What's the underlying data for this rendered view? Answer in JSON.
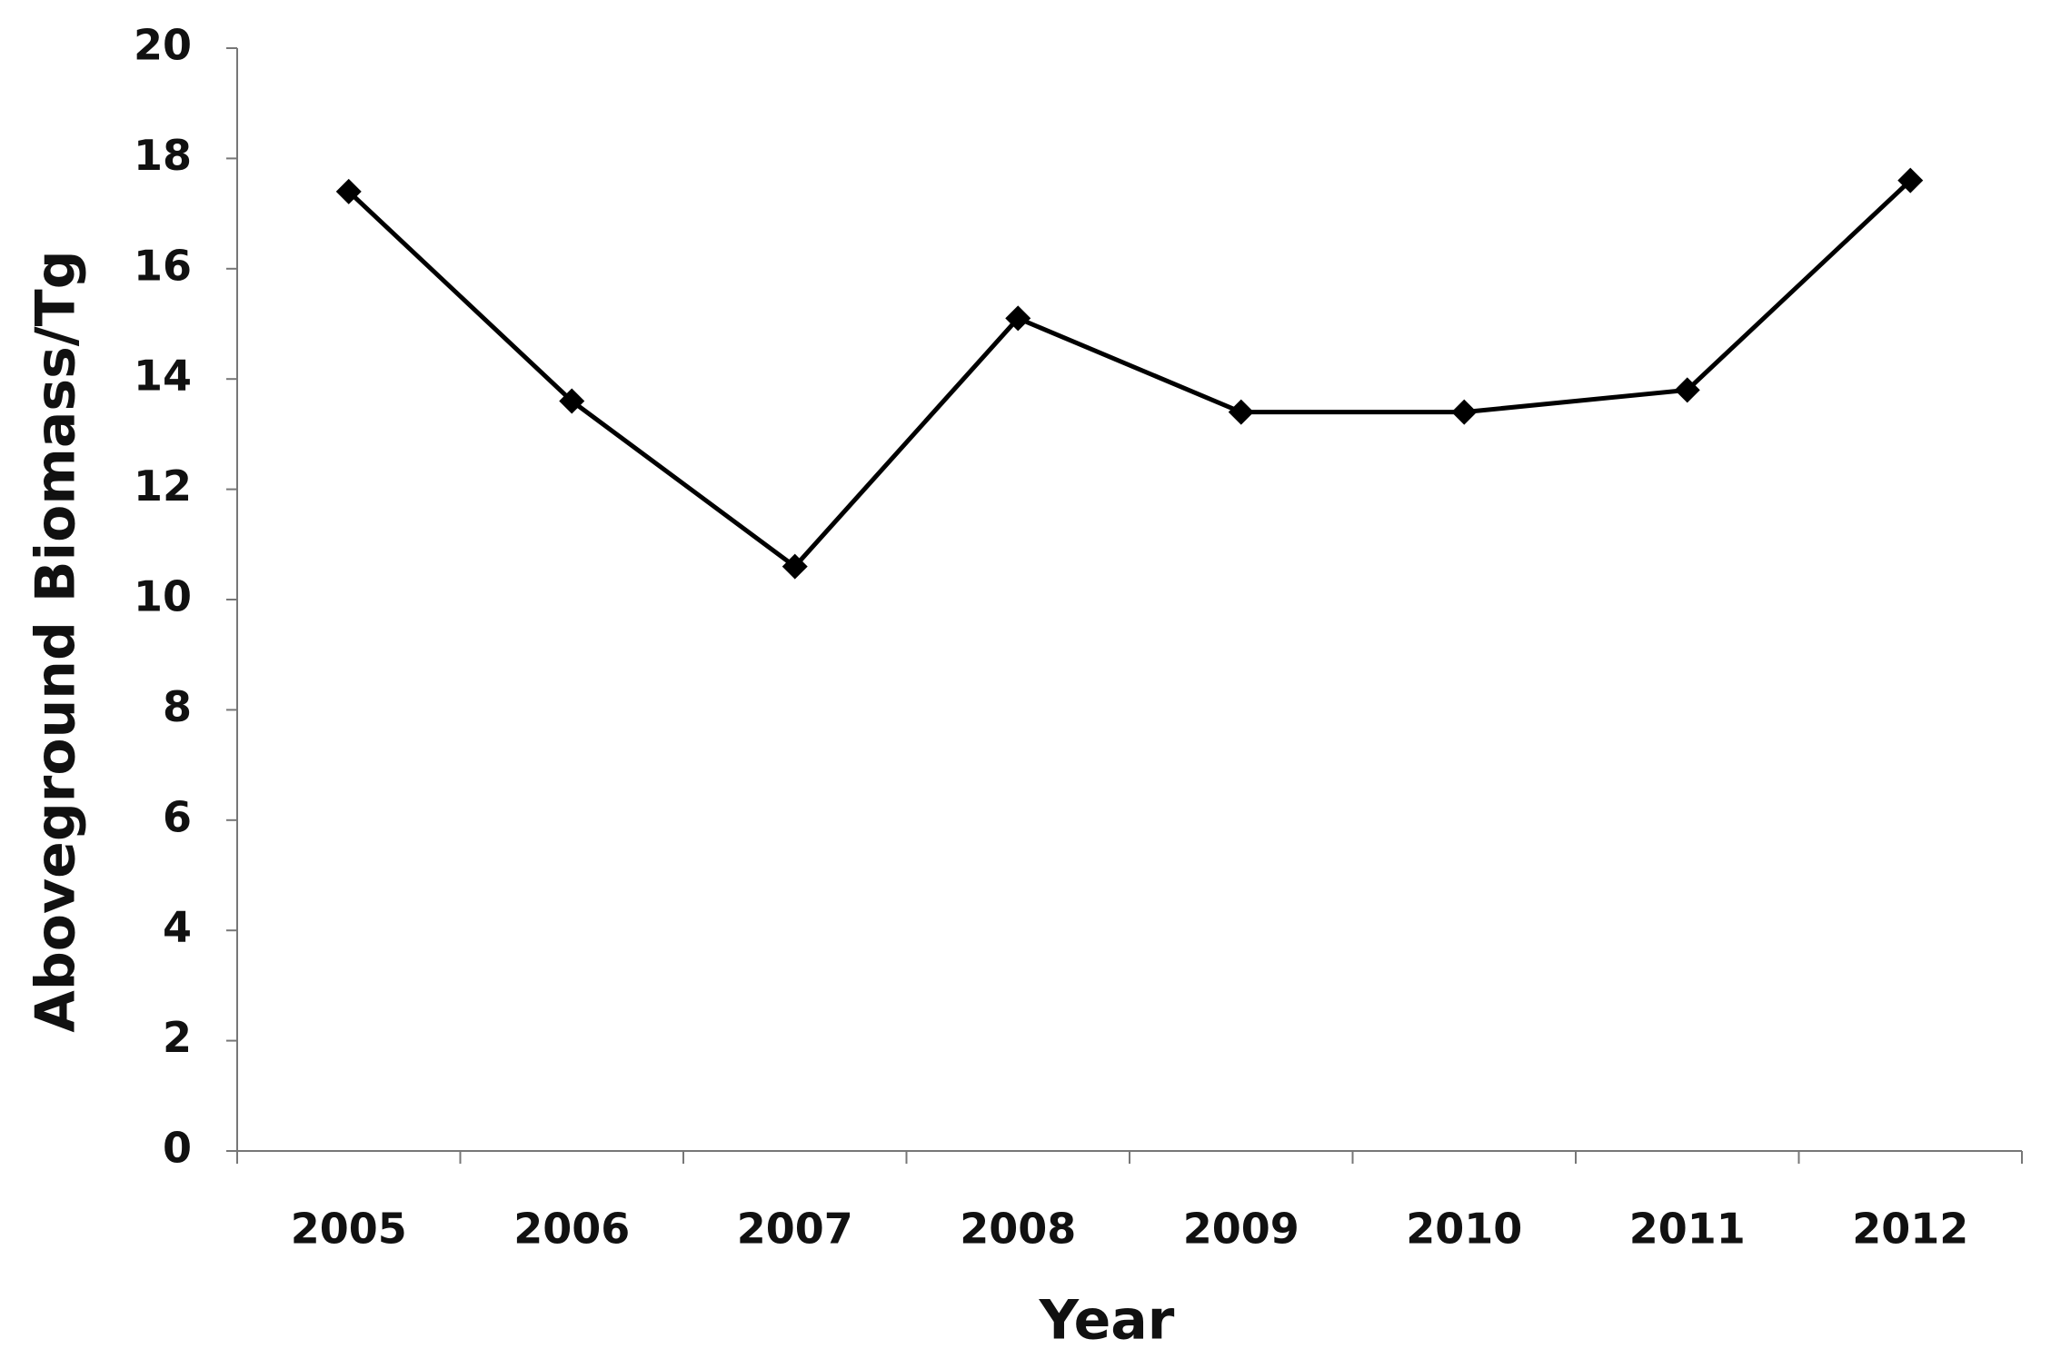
{
  "chart_data": {
    "type": "line",
    "x_label": "Year",
    "y_label": "Aboveground Biomass/Tg",
    "categories": [
      "2005",
      "2006",
      "2007",
      "2008",
      "2009",
      "2010",
      "2011",
      "2012"
    ],
    "values": [
      17.4,
      13.6,
      10.6,
      15.1,
      13.4,
      13.4,
      13.8,
      17.6
    ],
    "color": "#000000",
    "ylim": [
      0,
      20
    ],
    "yticks": [
      0,
      2,
      4,
      6,
      8,
      10,
      12,
      14,
      16,
      18,
      20
    ],
    "grid": false
  }
}
